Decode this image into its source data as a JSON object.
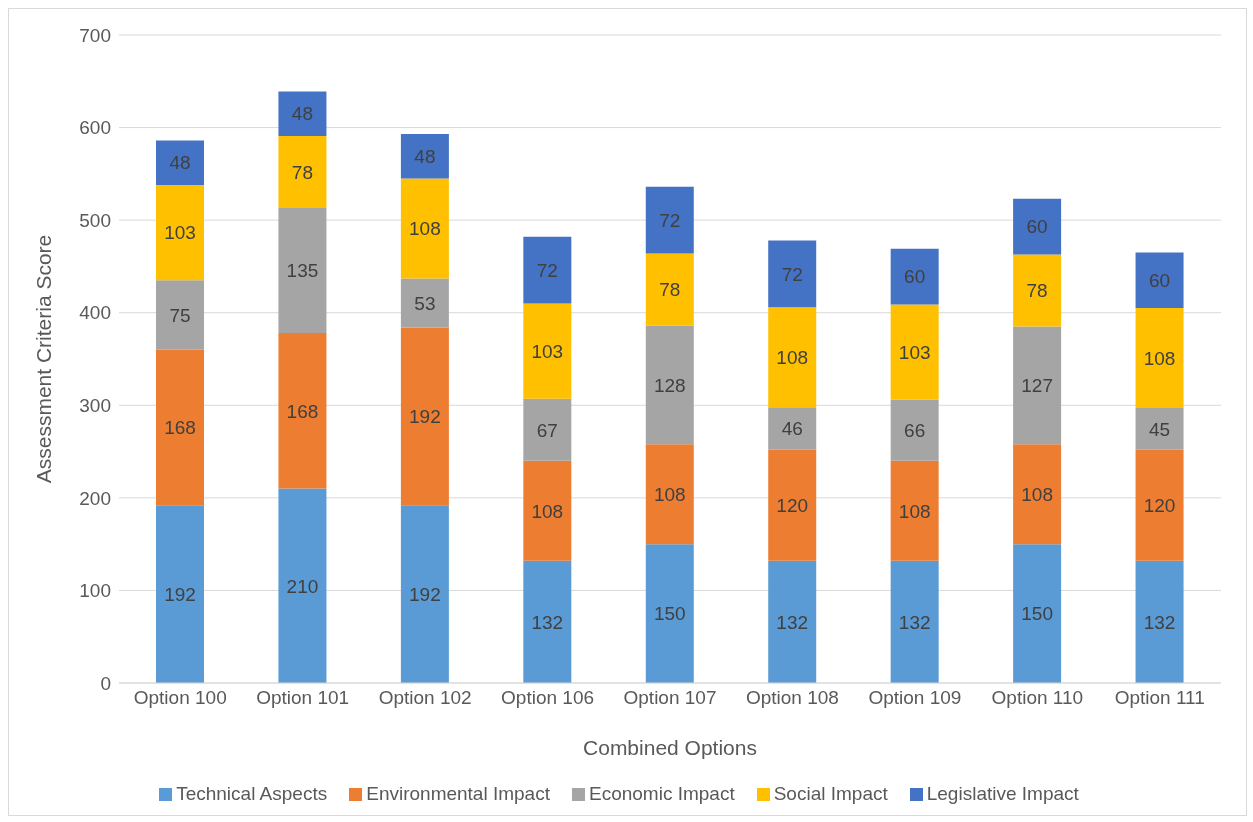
{
  "chart_data": {
    "type": "bar",
    "stacked": true,
    "xlabel": "Combined Options",
    "ylabel": "Assessment Criteria Score",
    "categories": [
      "Option 100",
      "Option 101",
      "Option 102",
      "Option 106",
      "Option 107",
      "Option 108",
      "Option 109",
      "Option 110",
      "Option 111"
    ],
    "series": [
      {
        "name": "Technical Aspects",
        "color": "#5b9bd5",
        "values": [
          192,
          210,
          192,
          132,
          150,
          132,
          132,
          150,
          132
        ]
      },
      {
        "name": "Environmental Impact",
        "color": "#ed7d31",
        "values": [
          168,
          168,
          192,
          108,
          108,
          120,
          108,
          108,
          120
        ]
      },
      {
        "name": "Economic Impact",
        "color": "#a5a5a5",
        "values": [
          75,
          135,
          53,
          67,
          128,
          46,
          66,
          127,
          45
        ]
      },
      {
        "name": "Social Impact",
        "color": "#ffc000",
        "values": [
          103,
          78,
          108,
          103,
          78,
          108,
          103,
          78,
          108
        ]
      },
      {
        "name": "Legislative Impact",
        "color": "#4472c4",
        "values": [
          48,
          48,
          48,
          72,
          72,
          72,
          60,
          60,
          60
        ]
      }
    ],
    "ylim": [
      0,
      700
    ],
    "yticks": [
      0,
      100,
      200,
      300,
      400,
      500,
      600,
      700
    ],
    "grid": "y",
    "legend": "bottom",
    "data_labels": true
  }
}
